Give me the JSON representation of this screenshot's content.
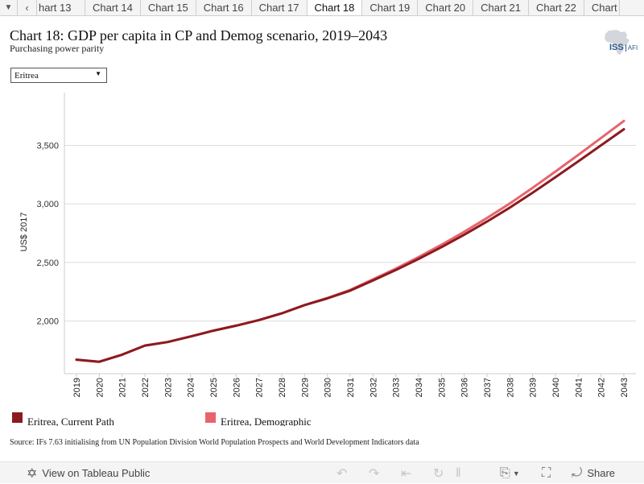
{
  "tabs": {
    "prev_icon": "chevron-left-icon",
    "menu_icon": "caret-down-icon",
    "items": [
      {
        "label": "hart 13",
        "active": false
      },
      {
        "label": "Chart 14",
        "active": false
      },
      {
        "label": "Chart 15",
        "active": false
      },
      {
        "label": "Chart 16",
        "active": false
      },
      {
        "label": "Chart 17",
        "active": false
      },
      {
        "label": "Chart 18",
        "active": true
      },
      {
        "label": "Chart 19",
        "active": false
      },
      {
        "label": "Chart 20",
        "active": false
      },
      {
        "label": "Chart 21",
        "active": false
      },
      {
        "label": "Chart 22",
        "active": false
      },
      {
        "label": "Chart",
        "active": false
      }
    ]
  },
  "logo": {
    "text": "ISS",
    "sub": "AFI"
  },
  "filter": {
    "selected": "Eritrea"
  },
  "chart_data": {
    "type": "line",
    "title": "Chart 18: GDP per capita in CP and Demog scenario, 2019–2043",
    "subtitle": "Purchasing power parity",
    "ylabel": "US$ 2017",
    "xlabel": "",
    "x": [
      "2019",
      "2020",
      "2021",
      "2022",
      "2023",
      "2024",
      "2025",
      "2026",
      "2027",
      "2028",
      "2029",
      "2030",
      "2031",
      "2032",
      "2033",
      "2034",
      "2035",
      "2036",
      "2037",
      "2038",
      "2039",
      "2040",
      "2041",
      "2042",
      "2043"
    ],
    "ylim": [
      1550,
      3950
    ],
    "yticks": [
      2000,
      2500,
      3000,
      3500
    ],
    "ytick_labels": [
      "2,000",
      "2,500",
      "3,000",
      "3,500"
    ],
    "grid": true,
    "legend_position": "bottom",
    "series": [
      {
        "name": "Eritrea, Current Path",
        "color": "#8b1a1f",
        "values": [
          1670,
          1652,
          1712,
          1790,
          1820,
          1868,
          1917,
          1960,
          2008,
          2065,
          2135,
          2193,
          2259,
          2346,
          2435,
          2530,
          2630,
          2737,
          2849,
          2968,
          3096,
          3228,
          3363,
          3500,
          3637
        ]
      },
      {
        "name": "Eritrea, Demographic",
        "color": "#e8646c",
        "values": [
          1670,
          1652,
          1712,
          1790,
          1820,
          1868,
          1917,
          1960,
          2008,
          2065,
          2136,
          2196,
          2265,
          2355,
          2447,
          2546,
          2650,
          2762,
          2879,
          3003,
          3137,
          3276,
          3418,
          3563,
          3708
        ]
      }
    ]
  },
  "source": "Source: IFs 7.63 initialising from UN Population Division World Population Prospects and World Development Indicators data",
  "footer": {
    "view_label": "View on Tableau Public",
    "share_label": "Share"
  }
}
